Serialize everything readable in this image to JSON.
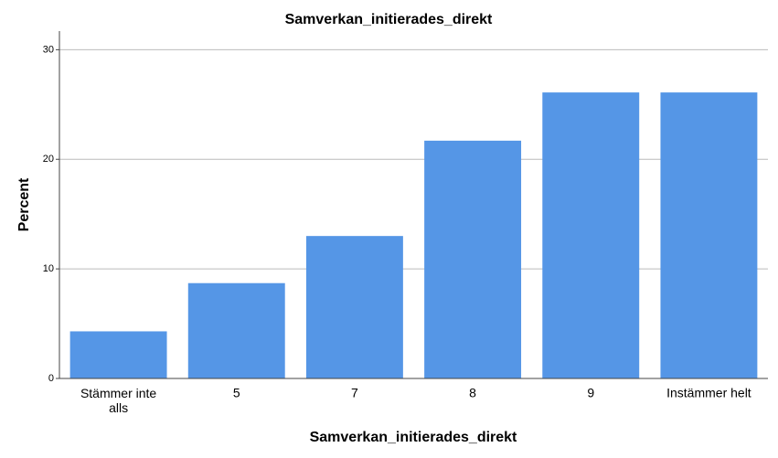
{
  "chart_data": {
    "type": "bar",
    "title": "Samverkan_initierades_direkt",
    "x_label": "Samverkan_initierades_direkt",
    "y_label": "Percent",
    "categories": [
      "Stämmer inte alls",
      "5",
      "7",
      "8",
      "9",
      "Instämmer helt"
    ],
    "values": [
      4.3,
      8.7,
      13.0,
      21.7,
      26.1,
      26.1
    ],
    "color": "#5596e6",
    "ylim": [
      0,
      31.7
    ],
    "yticks": [
      0,
      10,
      20,
      30
    ],
    "grid": true
  }
}
